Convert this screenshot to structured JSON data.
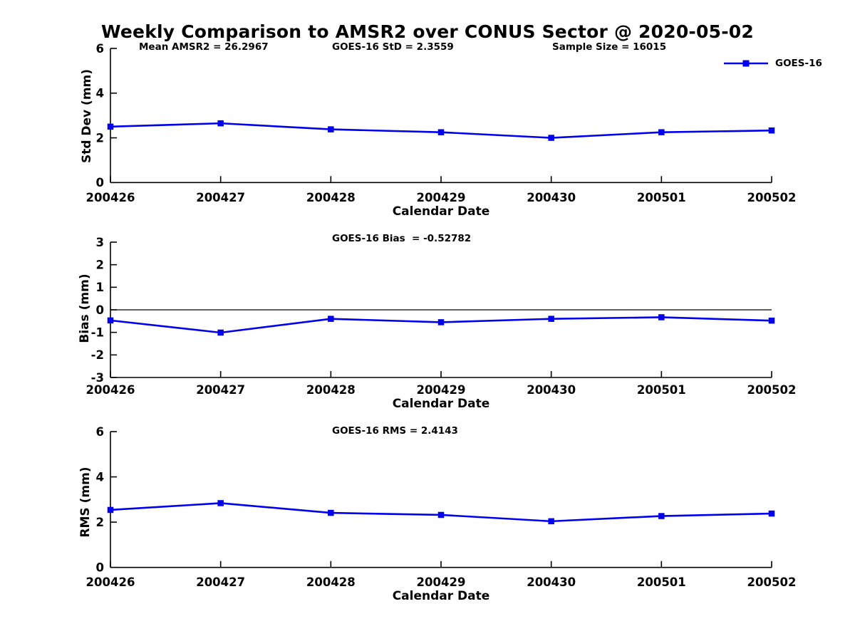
{
  "title": "Weekly Comparison to AMSR2 over CONUS Sector @ 2020-05-02",
  "legend": {
    "label": "GOES-16",
    "color": "#0000ee"
  },
  "chart_data": [
    {
      "type": "line",
      "name": "std-dev-panel",
      "categories": [
        "200426",
        "200427",
        "200428",
        "200429",
        "200430",
        "200501",
        "200502"
      ],
      "series": [
        {
          "name": "GOES-16",
          "values": [
            2.5,
            2.65,
            2.38,
            2.25,
            2.0,
            2.25,
            2.33
          ]
        }
      ],
      "annotations": [
        "Mean AMSR2 = 26.2967",
        "GOES-16 StD = 2.3559",
        "Sample Size = 16015"
      ],
      "xlabel": "Calendar Date",
      "ylabel": "Std Dev (mm)",
      "ylim": [
        0,
        6
      ],
      "yticks": [
        0,
        2,
        4,
        6
      ],
      "grid": false,
      "zero_line": false,
      "marker": "square",
      "line_color": "#0000ee",
      "legend_position": "top-right-outside"
    },
    {
      "type": "line",
      "name": "bias-panel",
      "categories": [
        "200426",
        "200427",
        "200428",
        "200429",
        "200430",
        "200501",
        "200502"
      ],
      "series": [
        {
          "name": "GOES-16",
          "values": [
            -0.47,
            -1.01,
            -0.4,
            -0.55,
            -0.4,
            -0.33,
            -0.48
          ]
        }
      ],
      "annotations": [
        "GOES-16 Bias  = -0.52782"
      ],
      "xlabel": "Calendar Date",
      "ylabel": "Bias (mm)",
      "ylim": [
        -3,
        3
      ],
      "yticks": [
        -3,
        -2,
        -1,
        0,
        1,
        2,
        3
      ],
      "grid": false,
      "zero_line": true,
      "marker": "square",
      "line_color": "#0000ee",
      "legend_position": "none"
    },
    {
      "type": "line",
      "name": "rms-panel",
      "categories": [
        "200426",
        "200427",
        "200428",
        "200429",
        "200430",
        "200501",
        "200502"
      ],
      "series": [
        {
          "name": "GOES-16",
          "values": [
            2.54,
            2.84,
            2.41,
            2.32,
            2.04,
            2.27,
            2.38
          ]
        }
      ],
      "annotations": [
        "GOES-16 RMS = 2.4143"
      ],
      "xlabel": "Calendar Date",
      "ylabel": "RMS (mm)",
      "ylim": [
        0,
        6
      ],
      "yticks": [
        0,
        2,
        4,
        6
      ],
      "grid": false,
      "zero_line": false,
      "marker": "square",
      "line_color": "#0000ee",
      "legend_position": "none"
    }
  ]
}
